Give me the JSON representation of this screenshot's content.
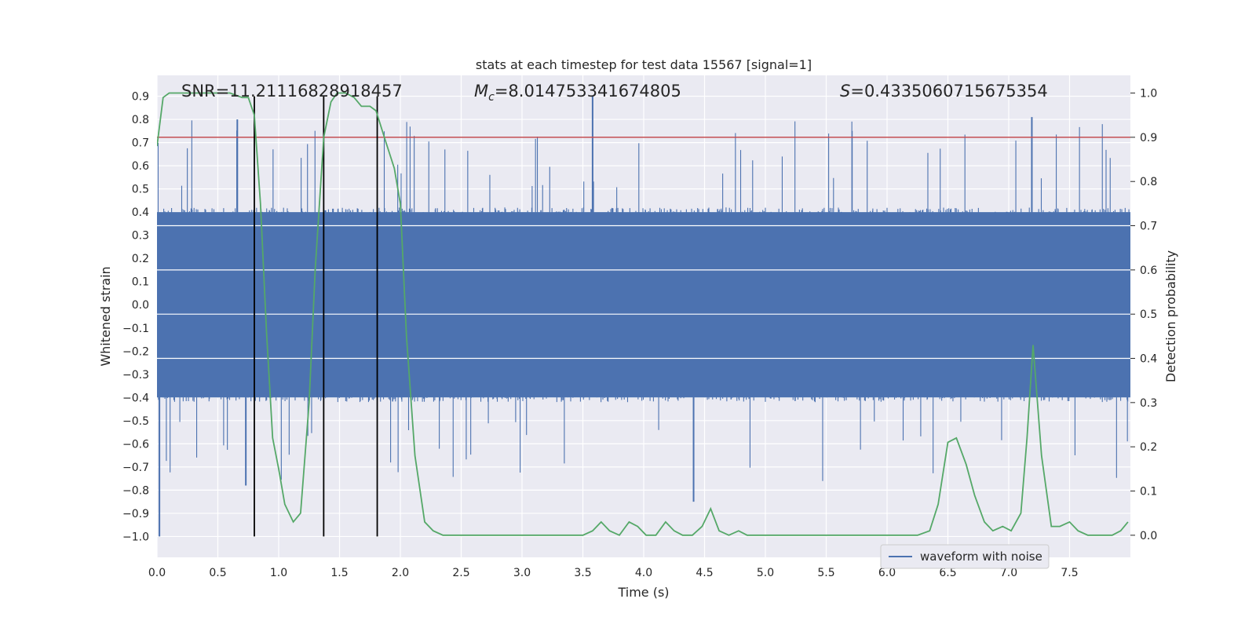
{
  "chart_data": {
    "type": "line",
    "title": "stats at each timestep for test data 15567 [signal=1]",
    "xlabel": "Time (s)",
    "ylabel": "Whitened strain",
    "y2label": "Detection probability",
    "xlim": [
      0,
      8
    ],
    "ylim": [
      -1.09,
      0.99
    ],
    "y2lim": [
      -0.05,
      1.04
    ],
    "x_ticks": [
      "0.0",
      "0.5",
      "1.0",
      "1.5",
      "2.0",
      "2.5",
      "3.0",
      "3.5",
      "4.0",
      "4.5",
      "5.0",
      "5.5",
      "6.0",
      "6.5",
      "7.0",
      "7.5"
    ],
    "y_ticks": [
      "0.9",
      "0.8",
      "0.7",
      "0.6",
      "0.5",
      "0.4",
      "0.3",
      "0.2",
      "0.1",
      "0.0",
      "-0.1",
      "-0.2",
      "-0.3",
      "-0.4",
      "-0.5",
      "-0.6",
      "-0.7",
      "-0.8",
      "-0.9",
      "-1.0"
    ],
    "y2_ticks": [
      "1.0",
      "0.9",
      "0.8",
      "0.7",
      "0.6",
      "0.5",
      "0.4",
      "0.3",
      "0.2",
      "0.1",
      "0.0"
    ],
    "grid": true,
    "background": "#eaeaf2",
    "annotations": {
      "snr": "SNR=11.21116828918457",
      "mc_symbol": "M",
      "mc_sub": "c",
      "mc_value": "=8.014753341674805",
      "s_symbol": "S",
      "s_value": "=0.4335060715675354"
    },
    "legend": {
      "label": "waveform with noise",
      "placement": "lower-right"
    },
    "series": [
      {
        "name": "waveform with noise",
        "axis": "left",
        "color": "#4c72b0",
        "kind": "noisy waveform",
        "duration_s": 8.0,
        "typical_envelope": [
          -0.42,
          0.42
        ],
        "peaks": [
          {
            "x": 0.02,
            "y": -1.0
          },
          {
            "x": 0.66,
            "y": 0.8
          },
          {
            "x": 0.73,
            "y": -0.78
          },
          {
            "x": 3.58,
            "y": 0.9
          },
          {
            "x": 4.41,
            "y": -0.85
          },
          {
            "x": 7.19,
            "y": 0.81
          }
        ]
      },
      {
        "name": "detection probability",
        "axis": "right",
        "color": "#55a868",
        "x": [
          0.0,
          0.05,
          0.1,
          0.2,
          0.3,
          0.4,
          0.5,
          0.6,
          0.7,
          0.75,
          0.8,
          0.85,
          0.9,
          0.95,
          1.0,
          1.05,
          1.12,
          1.18,
          1.25,
          1.3,
          1.37,
          1.43,
          1.48,
          1.55,
          1.62,
          1.68,
          1.75,
          1.8,
          1.88,
          1.95,
          2.0,
          2.05,
          2.12,
          2.2,
          2.27,
          2.35,
          2.5,
          2.75,
          3.0,
          3.25,
          3.5,
          3.58,
          3.65,
          3.72,
          3.8,
          3.88,
          3.95,
          4.02,
          4.1,
          4.18,
          4.25,
          4.32,
          4.4,
          4.48,
          4.55,
          4.62,
          4.7,
          4.78,
          4.85,
          4.92,
          5.0,
          5.25,
          5.5,
          5.75,
          6.0,
          6.25,
          6.35,
          6.42,
          6.5,
          6.57,
          6.65,
          6.72,
          6.8,
          6.87,
          6.95,
          7.02,
          7.1,
          7.15,
          7.2,
          7.27,
          7.35,
          7.42,
          7.5,
          7.57,
          7.65,
          7.75,
          7.85,
          7.92,
          7.98
        ],
        "values": [
          0.88,
          0.99,
          1.0,
          1.0,
          1.0,
          1.0,
          1.0,
          1.0,
          0.99,
          0.99,
          0.95,
          0.75,
          0.46,
          0.22,
          0.15,
          0.07,
          0.03,
          0.05,
          0.3,
          0.6,
          0.9,
          0.98,
          1.0,
          1.0,
          0.99,
          0.97,
          0.97,
          0.96,
          0.89,
          0.83,
          0.75,
          0.45,
          0.18,
          0.03,
          0.01,
          0.0,
          0.0,
          0.0,
          0.0,
          0.0,
          0.0,
          0.01,
          0.03,
          0.01,
          0.0,
          0.03,
          0.02,
          0.0,
          0.0,
          0.03,
          0.01,
          0.0,
          0.0,
          0.02,
          0.06,
          0.01,
          0.0,
          0.01,
          0.0,
          0.0,
          0.0,
          0.0,
          0.0,
          0.0,
          0.0,
          0.0,
          0.01,
          0.07,
          0.21,
          0.22,
          0.16,
          0.09,
          0.03,
          0.01,
          0.02,
          0.01,
          0.05,
          0.22,
          0.43,
          0.18,
          0.02,
          0.02,
          0.03,
          0.01,
          0.0,
          0.0,
          0.0,
          0.01,
          0.03
        ]
      }
    ],
    "reference_lines": {
      "threshold": {
        "axis": "right",
        "value": 0.9,
        "color": "#c44e52"
      },
      "markers": {
        "color": "#000000",
        "x": [
          0.8,
          1.37,
          1.81
        ],
        "y_range": [
          -1.0,
          0.9
        ]
      }
    }
  }
}
